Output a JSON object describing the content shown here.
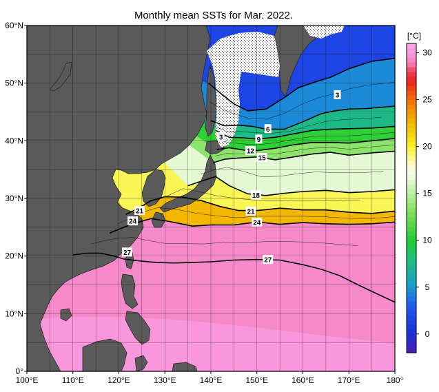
{
  "chart_data": {
    "type": "heatmap",
    "title": "Monthly mean SSTs for Mar. 2022.",
    "x_ticks": [
      "100°E",
      "110°E",
      "120°E",
      "130°E",
      "140°E",
      "150°E",
      "160°E",
      "170°E",
      "180°"
    ],
    "y_ticks": [
      "0°",
      "10°N",
      "20°N",
      "30°N",
      "40°N",
      "50°N",
      "60°N"
    ],
    "xlim": [
      100,
      180
    ],
    "ylim": [
      0,
      60
    ],
    "grid": true,
    "colorbar": {
      "unit": "[°C]",
      "ticks": [
        0,
        5,
        10,
        15,
        20,
        25,
        30
      ],
      "tick_labels": [
        "0",
        "5",
        "10",
        "15",
        "20",
        "25",
        "30"
      ],
      "range": [
        -2,
        31
      ],
      "stops": [
        {
          "v": -2,
          "c": "#4a1fae"
        },
        {
          "v": 0,
          "c": "#1b2fd6"
        },
        {
          "v": 3,
          "c": "#1c5bf0"
        },
        {
          "v": 5,
          "c": "#1a9ad0"
        },
        {
          "v": 8,
          "c": "#1ec07a"
        },
        {
          "v": 10,
          "c": "#1fcc30"
        },
        {
          "v": 13,
          "c": "#7fe05a"
        },
        {
          "v": 15,
          "c": "#b8f0a0"
        },
        {
          "v": 17,
          "c": "#f3fbe4"
        },
        {
          "v": 18,
          "c": "#fbfbd0"
        },
        {
          "v": 20,
          "c": "#f7f32a"
        },
        {
          "v": 22,
          "c": "#f5c400"
        },
        {
          "v": 24,
          "c": "#f29100"
        },
        {
          "v": 26,
          "c": "#ee4a0f"
        },
        {
          "v": 27,
          "c": "#e8231e"
        },
        {
          "v": 28,
          "c": "#ef3f52"
        },
        {
          "v": 29,
          "c": "#f585c5"
        },
        {
          "v": 31,
          "c": "#fba8f0"
        }
      ]
    },
    "isotherm_labels": [
      {
        "text": "3",
        "lon": 167.5,
        "lat": 48.0
      },
      {
        "text": "3",
        "lon": 142.2,
        "lat": 40.7
      },
      {
        "text": "6",
        "lon": 152.4,
        "lat": 42.1
      },
      {
        "text": "9",
        "lon": 150.4,
        "lat": 40.3
      },
      {
        "text": "12",
        "lon": 148.6,
        "lat": 38.3
      },
      {
        "text": "15",
        "lon": 151.1,
        "lat": 37.1
      },
      {
        "text": "18",
        "lon": 149.8,
        "lat": 30.6
      },
      {
        "text": "21",
        "lon": 124.5,
        "lat": 27.9
      },
      {
        "text": "21",
        "lon": 148.7,
        "lat": 27.8
      },
      {
        "text": "24",
        "lon": 123.0,
        "lat": 26.1
      },
      {
        "text": "24",
        "lon": 150.0,
        "lat": 25.9
      },
      {
        "text": "27",
        "lon": 121.8,
        "lat": 20.7
      },
      {
        "text": "27",
        "lon": 152.4,
        "lat": 19.4
      }
    ],
    "isotherms": [
      {
        "v": 3,
        "pts": [
          [
            139.5,
            50.0
          ],
          [
            142,
            48.3
          ],
          [
            145,
            46.4
          ],
          [
            148,
            45.2
          ],
          [
            152,
            45.5
          ],
          [
            156,
            47.5
          ],
          [
            159,
            49.2
          ],
          [
            163,
            50.3
          ],
          [
            166,
            51.0
          ],
          [
            170,
            52.5
          ],
          [
            175,
            53.8
          ],
          [
            180,
            54.3
          ]
        ]
      },
      {
        "v": 6,
        "pts": [
          [
            140,
            43.5
          ],
          [
            143,
            42.6
          ],
          [
            146,
            42.7
          ],
          [
            149,
            42.5
          ],
          [
            152,
            42.0
          ],
          [
            156,
            42.0
          ],
          [
            160,
            43.3
          ],
          [
            164,
            44.7
          ],
          [
            167,
            45.2
          ],
          [
            170,
            45.5
          ],
          [
            174,
            45.6
          ],
          [
            180,
            46.0
          ]
        ]
      },
      {
        "v": 9,
        "pts": [
          [
            141,
            41.8
          ],
          [
            144,
            40.6
          ],
          [
            147,
            40.5
          ],
          [
            150,
            40.3
          ],
          [
            154,
            40.6
          ],
          [
            158,
            41.2
          ],
          [
            162,
            41.8
          ],
          [
            166,
            42.0
          ],
          [
            170,
            42.1
          ],
          [
            175,
            42.2
          ],
          [
            180,
            42.5
          ]
        ]
      },
      {
        "v": 12,
        "pts": [
          [
            141.3,
            38.5
          ],
          [
            144,
            38.8
          ],
          [
            147,
            38.4
          ],
          [
            150,
            38.3
          ],
          [
            154,
            38.7
          ],
          [
            158,
            39.3
          ],
          [
            162,
            39.7
          ],
          [
            166,
            39.7
          ],
          [
            170,
            39.6
          ],
          [
            175,
            40.0
          ],
          [
            180,
            40.4
          ]
        ]
      },
      {
        "v": 15,
        "pts": [
          [
            140.5,
            36.2
          ],
          [
            143,
            36.8
          ],
          [
            146,
            37.0
          ],
          [
            150,
            37.2
          ],
          [
            154,
            36.7
          ],
          [
            158,
            37.2
          ],
          [
            162,
            37.7
          ],
          [
            166,
            38.0
          ],
          [
            170,
            37.5
          ],
          [
            175,
            37.9
          ],
          [
            180,
            38.2
          ]
        ]
      },
      {
        "v": 18,
        "pts": [
          [
            135,
            32.2
          ],
          [
            138,
            33.0
          ],
          [
            141,
            33.8
          ],
          [
            144,
            32.2
          ],
          [
            148,
            30.8
          ],
          [
            152,
            30.5
          ],
          [
            156,
            30.9
          ],
          [
            160,
            31.2
          ],
          [
            165,
            31.4
          ],
          [
            170,
            31.0
          ],
          [
            175,
            31.2
          ],
          [
            180,
            31.5
          ]
        ]
      },
      {
        "v": 21,
        "pts": [
          [
            121.5,
            27.2
          ],
          [
            124,
            28.2
          ],
          [
            127,
            29.6
          ],
          [
            130,
            30.3
          ],
          [
            134,
            30.2
          ],
          [
            138,
            29.6
          ],
          [
            142,
            28.6
          ],
          [
            146,
            27.9
          ],
          [
            150,
            27.9
          ],
          [
            155,
            28.3
          ],
          [
            160,
            28.0
          ],
          [
            165,
            28.0
          ],
          [
            170,
            27.6
          ],
          [
            175,
            27.4
          ],
          [
            180,
            27.8
          ]
        ]
      },
      {
        "v": 24,
        "pts": [
          [
            118,
            24.0
          ],
          [
            120.5,
            24.8
          ],
          [
            123,
            25.6
          ],
          [
            127,
            26.5
          ],
          [
            131,
            26.0
          ],
          [
            136,
            25.2
          ],
          [
            140,
            25.4
          ],
          [
            145,
            25.4
          ],
          [
            150,
            25.9
          ],
          [
            155,
            25.5
          ],
          [
            160,
            25.8
          ],
          [
            165,
            25.6
          ],
          [
            170,
            25.5
          ],
          [
            175,
            25.6
          ],
          [
            180,
            25.9
          ]
        ]
      },
      {
        "v": 27,
        "pts": [
          [
            110,
            20.2
          ],
          [
            113,
            20.5
          ],
          [
            116,
            20.5
          ],
          [
            119,
            20.0
          ],
          [
            121,
            19.5
          ],
          [
            124,
            19.2
          ],
          [
            128,
            18.9
          ],
          [
            132,
            18.8
          ],
          [
            136,
            18.9
          ],
          [
            140,
            19.0
          ],
          [
            145,
            19.3
          ],
          [
            150,
            19.4
          ],
          [
            155,
            19.3
          ],
          [
            160,
            18.5
          ],
          [
            164,
            17.7
          ],
          [
            168,
            16.6
          ],
          [
            172,
            15.0
          ],
          [
            176,
            13.5
          ],
          [
            180,
            12.0
          ]
        ]
      }
    ]
  }
}
